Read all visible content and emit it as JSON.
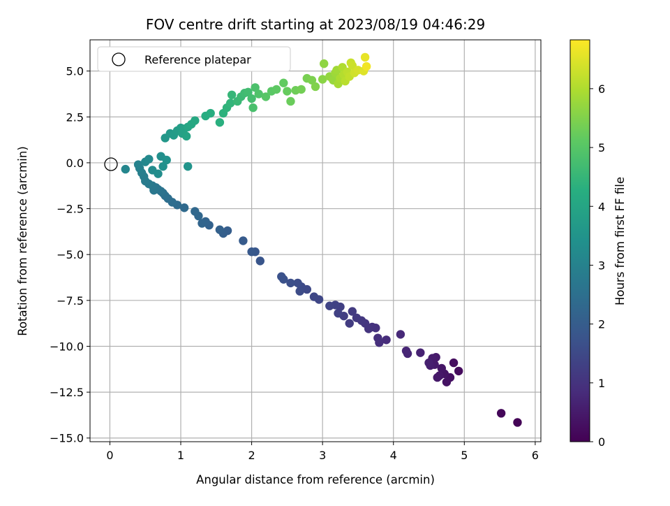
{
  "chart_data": {
    "type": "scatter",
    "title": "FOV centre drift starting at 2023/08/19 04:46:29",
    "xlabel": "Angular distance from reference (arcmin)",
    "ylabel": "Rotation from reference (arcmin)",
    "xlim": [
      -0.28,
      6.08
    ],
    "ylim": [
      -15.2,
      6.7
    ],
    "xticks": [
      "0",
      "1",
      "2",
      "3",
      "4",
      "5",
      "6"
    ],
    "yticks": [
      "5.0",
      "2.5",
      "0.0",
      "−2.5",
      "−5.0",
      "−7.5",
      "−10.0",
      "−12.5",
      "−15.0"
    ],
    "grid": true,
    "legend": {
      "placement": "top-left",
      "label": "Reference platepar"
    },
    "reference_point": {
      "x": 0,
      "y": 0
    },
    "colorbar": {
      "label": "Hours from first FF file",
      "colormap": "viridis",
      "range": [
        0,
        6.83
      ],
      "ticks": [
        "0",
        "1",
        "2",
        "3",
        "4",
        "5",
        "6"
      ]
    },
    "points": [
      [
        5.75,
        -14.15,
        0.05
      ],
      [
        5.52,
        -13.65,
        0.12
      ],
      [
        4.92,
        -11.35,
        0.2
      ],
      [
        4.85,
        -10.9,
        0.25
      ],
      [
        4.8,
        -11.7,
        0.3
      ],
      [
        4.75,
        -11.95,
        0.33
      ],
      [
        4.72,
        -11.5,
        0.36
      ],
      [
        4.68,
        -11.2,
        0.4
      ],
      [
        4.65,
        -11.6,
        0.43
      ],
      [
        4.62,
        -11.7,
        0.46
      ],
      [
        4.6,
        -10.6,
        0.48
      ],
      [
        4.58,
        -11.0,
        0.5
      ],
      [
        4.55,
        -10.65,
        0.53
      ],
      [
        4.52,
        -11.05,
        0.56
      ],
      [
        4.5,
        -10.9,
        0.6
      ],
      [
        4.38,
        -10.35,
        0.65
      ],
      [
        4.2,
        -10.4,
        0.7
      ],
      [
        4.18,
        -10.25,
        0.72
      ],
      [
        4.1,
        -9.35,
        0.78
      ],
      [
        3.9,
        -9.65,
        0.85
      ],
      [
        3.8,
        -9.8,
        0.9
      ],
      [
        3.78,
        -9.55,
        0.93
      ],
      [
        3.75,
        -9.0,
        0.96
      ],
      [
        3.7,
        -8.95,
        1.0
      ],
      [
        3.65,
        -9.05,
        1.03
      ],
      [
        3.6,
        -8.75,
        1.06
      ],
      [
        3.55,
        -8.6,
        1.1
      ],
      [
        3.48,
        -8.45,
        1.13
      ],
      [
        3.42,
        -8.1,
        1.17
      ],
      [
        3.38,
        -8.75,
        1.2
      ],
      [
        3.3,
        -8.35,
        1.24
      ],
      [
        3.25,
        -7.85,
        1.28
      ],
      [
        3.22,
        -8.2,
        1.31
      ],
      [
        3.18,
        -7.75,
        1.34
      ],
      [
        3.1,
        -7.8,
        1.38
      ],
      [
        2.95,
        -7.45,
        1.42
      ],
      [
        2.88,
        -7.3,
        1.46
      ],
      [
        2.78,
        -6.9,
        1.5
      ],
      [
        2.7,
        -6.75,
        1.53
      ],
      [
        2.68,
        -7.0,
        1.56
      ],
      [
        2.65,
        -6.55,
        1.6
      ],
      [
        2.55,
        -6.55,
        1.64
      ],
      [
        2.45,
        -6.35,
        1.68
      ],
      [
        2.42,
        -6.2,
        1.72
      ],
      [
        2.12,
        -5.35,
        1.8
      ],
      [
        2.05,
        -4.85,
        1.85
      ],
      [
        2.0,
        -4.85,
        1.9
      ],
      [
        1.88,
        -4.25,
        1.96
      ],
      [
        1.66,
        -3.7,
        2.02
      ],
      [
        1.6,
        -3.85,
        2.06
      ],
      [
        1.55,
        -3.65,
        2.1
      ],
      [
        1.4,
        -3.4,
        2.14
      ],
      [
        1.35,
        -3.2,
        2.18
      ],
      [
        1.3,
        -3.3,
        2.22
      ],
      [
        1.25,
        -2.9,
        2.26
      ],
      [
        1.2,
        -2.65,
        2.3
      ],
      [
        1.05,
        -2.45,
        2.34
      ],
      [
        0.95,
        -2.3,
        2.38
      ],
      [
        0.88,
        -2.15,
        2.42
      ],
      [
        0.82,
        -1.95,
        2.46
      ],
      [
        0.78,
        -1.8,
        2.5
      ],
      [
        0.75,
        -1.65,
        2.54
      ],
      [
        0.72,
        -1.55,
        2.58
      ],
      [
        0.68,
        -1.45,
        2.62
      ],
      [
        0.65,
        -1.35,
        2.66
      ],
      [
        0.62,
        -1.5,
        2.7
      ],
      [
        0.6,
        -1.25,
        2.74
      ],
      [
        0.55,
        -1.15,
        2.78
      ],
      [
        0.5,
        -1.0,
        2.82
      ],
      [
        0.48,
        -0.75,
        2.86
      ],
      [
        0.45,
        -0.55,
        2.9
      ],
      [
        0.42,
        -0.3,
        2.95
      ],
      [
        0.4,
        -0.1,
        3.0
      ],
      [
        0.22,
        -0.35,
        3.1
      ],
      [
        0.5,
        0.05,
        3.15
      ],
      [
        0.55,
        0.2,
        3.2
      ],
      [
        0.6,
        -0.4,
        3.25
      ],
      [
        0.68,
        -0.6,
        3.3
      ],
      [
        0.72,
        0.35,
        3.35
      ],
      [
        0.75,
        -0.2,
        3.4
      ],
      [
        0.8,
        0.15,
        3.45
      ],
      [
        1.1,
        -0.2,
        3.5
      ],
      [
        0.78,
        1.35,
        3.6
      ],
      [
        0.85,
        1.6,
        3.65
      ],
      [
        0.9,
        1.5,
        3.7
      ],
      [
        0.95,
        1.75,
        3.75
      ],
      [
        1.0,
        1.9,
        3.8
      ],
      [
        1.02,
        1.6,
        3.85
      ],
      [
        1.05,
        1.85,
        3.9
      ],
      [
        1.08,
        1.45,
        3.95
      ],
      [
        1.1,
        1.95,
        4.0
      ],
      [
        1.15,
        2.1,
        4.05
      ],
      [
        1.2,
        2.3,
        4.1
      ],
      [
        1.35,
        2.55,
        4.2
      ],
      [
        1.42,
        2.7,
        4.25
      ],
      [
        1.55,
        2.2,
        4.3
      ],
      [
        1.6,
        2.7,
        4.35
      ],
      [
        1.65,
        3.0,
        4.4
      ],
      [
        1.7,
        3.25,
        4.45
      ],
      [
        1.72,
        3.7,
        4.5
      ],
      [
        1.8,
        3.35,
        4.55
      ],
      [
        1.85,
        3.6,
        4.6
      ],
      [
        1.9,
        3.8,
        4.65
      ],
      [
        1.95,
        3.85,
        4.7
      ],
      [
        2.0,
        3.5,
        4.75
      ],
      [
        2.02,
        3.0,
        4.8
      ],
      [
        2.05,
        4.1,
        4.85
      ],
      [
        2.1,
        3.75,
        4.9
      ],
      [
        2.2,
        3.6,
        5.0
      ],
      [
        2.28,
        3.9,
        5.05
      ],
      [
        2.35,
        4.0,
        5.1
      ],
      [
        2.45,
        4.35,
        5.15
      ],
      [
        2.5,
        3.9,
        5.2
      ],
      [
        2.55,
        3.35,
        5.25
      ],
      [
        2.62,
        3.95,
        5.3
      ],
      [
        2.7,
        4.0,
        5.35
      ],
      [
        2.78,
        4.6,
        5.4
      ],
      [
        2.85,
        4.5,
        5.45
      ],
      [
        2.9,
        4.15,
        5.5
      ],
      [
        3.0,
        4.55,
        5.6
      ],
      [
        3.02,
        5.4,
        5.65
      ],
      [
        3.1,
        4.7,
        5.7
      ],
      [
        3.15,
        4.5,
        5.75
      ],
      [
        3.18,
        4.9,
        5.8
      ],
      [
        3.2,
        5.05,
        5.85
      ],
      [
        3.22,
        4.3,
        5.9
      ],
      [
        3.25,
        4.6,
        5.95
      ],
      [
        3.28,
        5.2,
        6.0
      ],
      [
        3.3,
        4.8,
        6.05
      ],
      [
        3.32,
        4.45,
        6.1
      ],
      [
        3.35,
        4.95,
        6.15
      ],
      [
        3.38,
        4.7,
        6.2
      ],
      [
        3.4,
        5.45,
        6.25
      ],
      [
        3.42,
        5.3,
        6.3
      ],
      [
        3.45,
        4.9,
        6.35
      ],
      [
        3.5,
        5.05,
        6.4
      ],
      [
        3.58,
        5.0,
        6.5
      ],
      [
        3.6,
        5.75,
        6.6
      ],
      [
        3.62,
        5.25,
        6.7
      ]
    ]
  }
}
